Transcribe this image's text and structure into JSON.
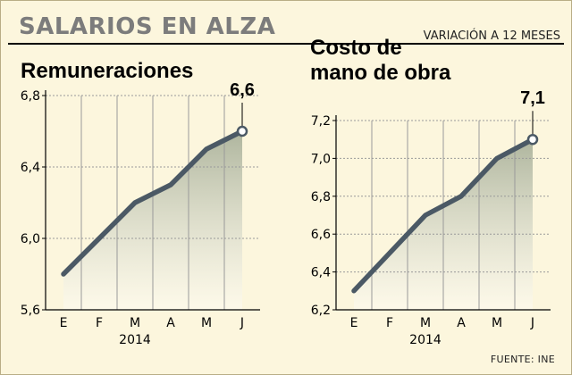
{
  "header": {
    "title": "SALARIOS EN ALZA",
    "subtitle": "VARIACIÓN A 12 MESES"
  },
  "footer": {
    "source": "FUENTE: INE"
  },
  "colors": {
    "background": "#fcf6dd",
    "line": "#4b5965",
    "area": "#6f806a",
    "grid": "#9a9a9a"
  },
  "chart_data": [
    {
      "type": "line",
      "title": "Remuneraciones",
      "xlabel": "2014",
      "ylabel": "",
      "categories": [
        "E",
        "F",
        "M",
        "A",
        "M",
        "J"
      ],
      "series": [
        {
          "values": [
            5.8,
            6.0,
            6.2,
            6.3,
            6.5,
            6.6
          ]
        }
      ],
      "ylim": [
        5.6,
        6.8
      ],
      "yticks": [
        "5,6",
        "6,0",
        "6,4",
        "6,8"
      ],
      "ytick_values": [
        5.6,
        6.0,
        6.4,
        6.8
      ],
      "last_label": "6,6",
      "grid": true
    },
    {
      "type": "line",
      "title": "Costo de mano de obra",
      "title_lines": [
        "Costo de",
        "mano de obra"
      ],
      "xlabel": "2014",
      "ylabel": "",
      "categories": [
        "E",
        "F",
        "M",
        "A",
        "M",
        "J"
      ],
      "series": [
        {
          "values": [
            6.3,
            6.5,
            6.7,
            6.8,
            7.0,
            7.1
          ]
        }
      ],
      "ylim": [
        6.2,
        7.2
      ],
      "yticks": [
        "6,2",
        "6,4",
        "6,6",
        "6,8",
        "7,0",
        "7,2"
      ],
      "ytick_values": [
        6.2,
        6.4,
        6.6,
        6.8,
        7.0,
        7.2
      ],
      "last_label": "7,1",
      "grid": true
    }
  ]
}
